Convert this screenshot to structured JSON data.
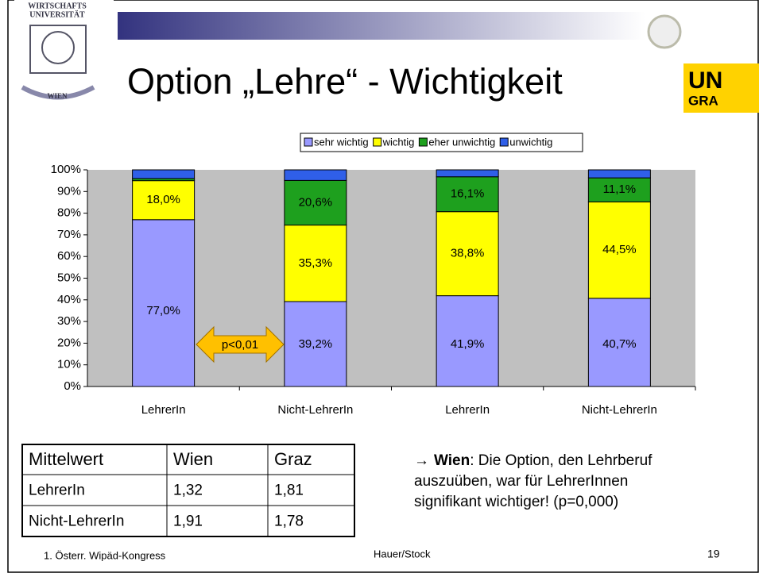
{
  "logos": {
    "left": [
      "WIRTSCHAFTS",
      "UNIVERSITÄT",
      "WIEN"
    ],
    "right": [
      "UN",
      "GRA"
    ]
  },
  "title": "Option „Lehre“ - Wichtigkeit",
  "chart_data": {
    "type": "stacked_bar",
    "categories": [
      "LehrerIn",
      "Nicht-LehrerIn",
      "LehrerIn",
      "Nicht-LehrerIn"
    ],
    "series": [
      {
        "name": "sehr wichtig",
        "color": "#9999ff",
        "values": [
          77.0,
          39.2,
          41.9,
          40.7
        ],
        "value_labels": [
          "77,0%",
          "39,2%",
          "41,9%",
          "40,7%"
        ]
      },
      {
        "name": "wichtig",
        "color": "#ffff00",
        "values": [
          18.0,
          35.3,
          38.8,
          44.5
        ],
        "value_labels": [
          "18,0%",
          "35,3%",
          "38,8%",
          "44,5%"
        ]
      },
      {
        "name": "eher unwichtig",
        "color": "#1ea01e",
        "values": [
          1.0,
          20.6,
          16.1,
          11.1
        ],
        "value_labels": [
          null,
          "20,6%",
          "16,1%",
          "11,1%"
        ]
      },
      {
        "name": "unwichtig",
        "color": "#2f5fe8",
        "values": [
          4.0,
          4.9,
          3.2,
          3.7
        ],
        "value_labels": [
          null,
          null,
          null,
          null
        ]
      }
    ],
    "ylim": [
      0,
      100
    ],
    "yticks": [
      {
        "value": 0,
        "label": "0%"
      },
      {
        "value": 10,
        "label": "10%"
      },
      {
        "value": 20,
        "label": "20%"
      },
      {
        "value": 30,
        "label": "30%"
      },
      {
        "value": 40,
        "label": "40%"
      },
      {
        "value": 50,
        "label": "50%"
      },
      {
        "value": 60,
        "label": "60%"
      },
      {
        "value": 70,
        "label": "70%"
      },
      {
        "value": 80,
        "label": "80%"
      },
      {
        "value": 90,
        "label": "90%"
      },
      {
        "value": 100,
        "label": "100%"
      }
    ],
    "legend": "top",
    "plot_background": "#c0c0c0",
    "annotation": "p<0,01"
  },
  "table": {
    "header": [
      "Mittelwert",
      "Wien",
      "Graz"
    ],
    "rows": [
      [
        "LehrerIn",
        "1,32",
        "1,81"
      ],
      [
        "Nicht-LehrerIn",
        "1,91",
        "1,78"
      ]
    ]
  },
  "note": {
    "arrow": "→",
    "bold": "Wien",
    "lines": [
      ": Die Option, den Lehrberuf",
      "auszuüben, war für LehrerInnen",
      "signifikant wichtiger! (p=0,000)"
    ]
  },
  "footer": {
    "left": "1. Österr. Wipäd-Kongress",
    "center": "Hauer/Stock",
    "page": "19"
  }
}
